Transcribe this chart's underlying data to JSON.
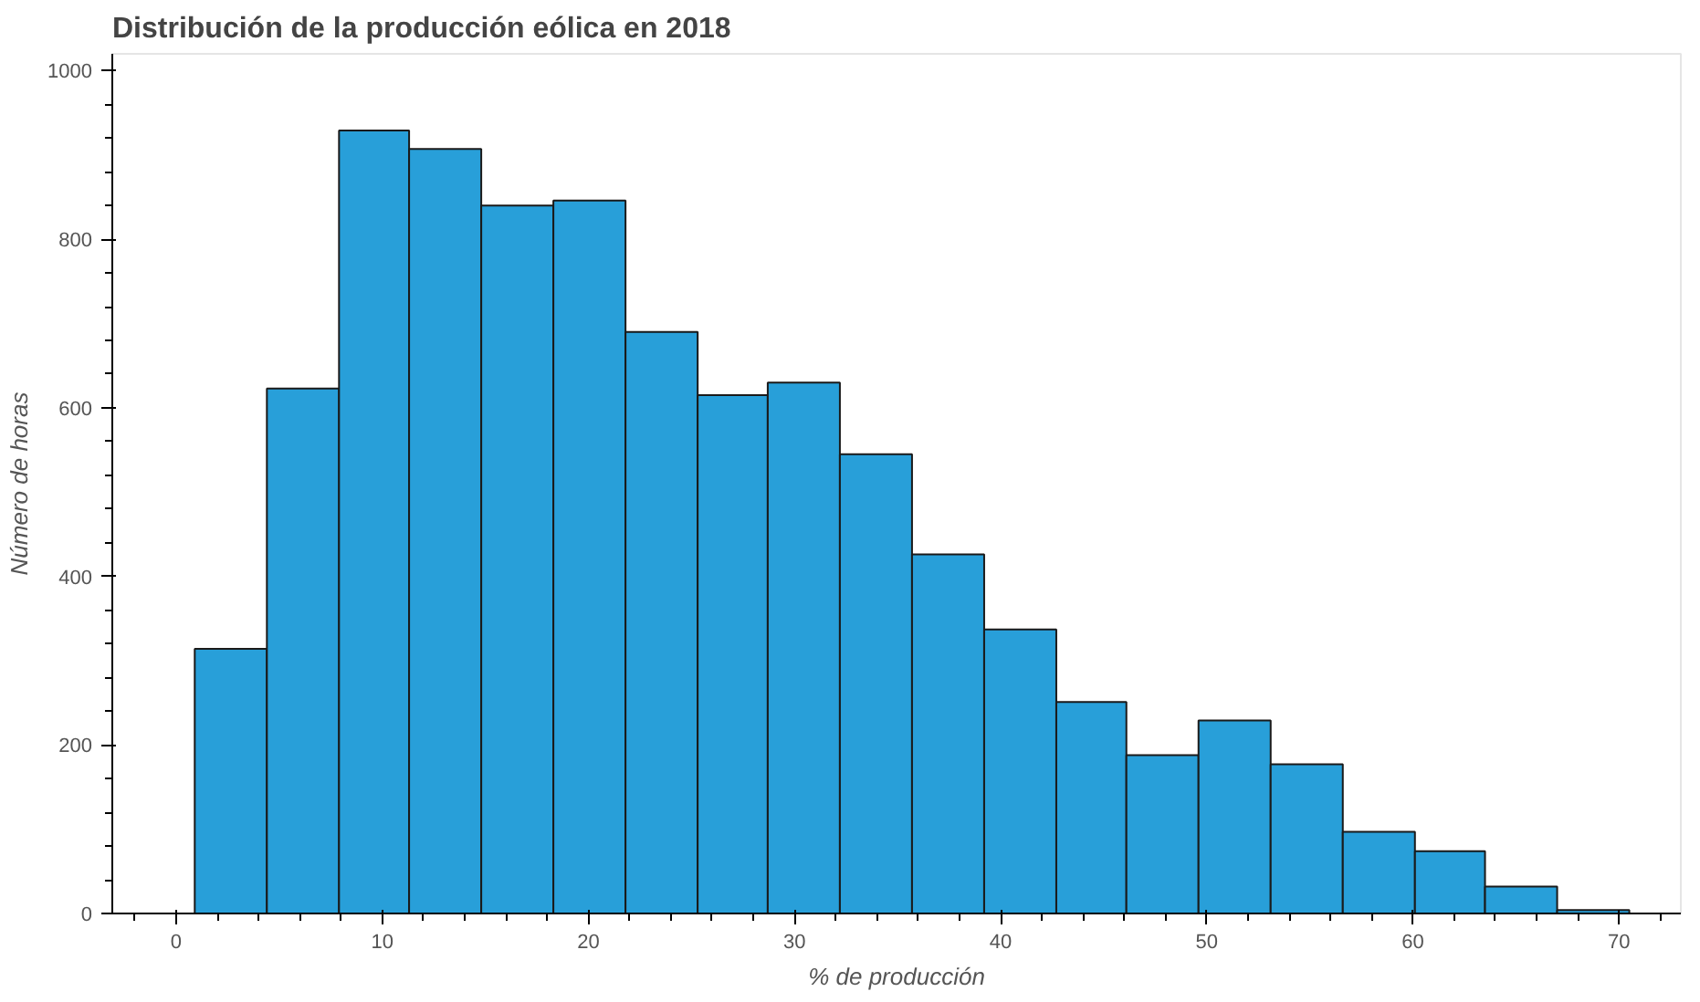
{
  "chart_data": {
    "type": "histogram",
    "title": "Distribución de la producción eólica en 2018",
    "xlabel": "% de producción",
    "ylabel": "Número de horas",
    "bins": [
      0.9,
      4.4,
      7.9,
      11.3,
      14.8,
      18.3,
      21.8,
      25.3,
      28.7,
      32.2,
      35.7,
      39.2,
      42.7,
      46.1,
      49.6,
      53.1,
      56.6,
      60.1,
      63.5,
      67.0,
      70.5
    ],
    "values": [
      314,
      623,
      929,
      907,
      840,
      846,
      690,
      615,
      630,
      545,
      426,
      337,
      251,
      188,
      229,
      177,
      97,
      74,
      32,
      4
    ],
    "color": "#289fd9",
    "xlim": [
      -3.1,
      73
    ],
    "ylim": [
      0,
      1020
    ],
    "xticks": [
      0,
      10,
      20,
      30,
      40,
      50,
      60,
      70
    ],
    "yticks": [
      0,
      200,
      400,
      600,
      800,
      1000
    ],
    "grid": false
  }
}
